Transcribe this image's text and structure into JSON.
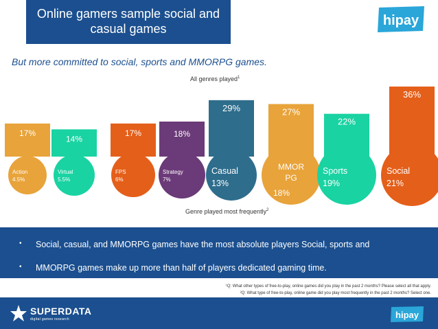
{
  "header": {
    "title": "Online gamers sample social and casual games",
    "logo_text": "hipay"
  },
  "subtitle": "But more committed to social, sports and MMORPG games.",
  "chart_data": {
    "type": "bar",
    "top_label": "All genres played",
    "top_label_sup": "1",
    "bottom_label": "Genre played most frequently",
    "bottom_label_sup": "2",
    "categories": [
      "Action",
      "Virtual",
      "FPS",
      "Strategy",
      "Casual",
      "MMORPG",
      "Sports",
      "Social"
    ],
    "series": [
      {
        "values": [
          17,
          14,
          17,
          18,
          29,
          27,
          22,
          36
        ],
        "value_labels": [
          "17%",
          "14%",
          "17%",
          "18%",
          "29%",
          "27%",
          "22%",
          "36%"
        ]
      },
      {
        "values": [
          4.5,
          5.5,
          6,
          7,
          13,
          18,
          19,
          21
        ],
        "value_labels": [
          "4.5%",
          "5.5%",
          "6%",
          "7%",
          "13%",
          "18%",
          "19%",
          "21%"
        ]
      }
    ],
    "circle_names": [
      "Action",
      "Virtual",
      "FPS",
      "Strategy",
      "Casual",
      "MMOR\nPG",
      "Sports",
      "Social"
    ],
    "colors": [
      "#e8a33a",
      "#19d3a2",
      "#e45f1a",
      "#6b3a78",
      "#2e6d8c",
      "#e8a33a",
      "#19d3a2",
      "#e45f1a"
    ]
  },
  "bullets": [
    "Social, casual, and MMORPG games have the most absolute players Social, sports and",
    "MMORPG games make up more than half of players dedicated gaming time."
  ],
  "bullet_marker": "•",
  "footnotes": [
    "¹Q: What other types of free-to-play, online games did you play in the past 2 months? Please select all that apply.",
    "²Q: What type of free-to-play, online game did you play most frequently in the past 2 months? Select one."
  ],
  "footer": {
    "brand": "SUPERDATA",
    "brand_sub": "digital games research",
    "logo_text": "hipay"
  }
}
